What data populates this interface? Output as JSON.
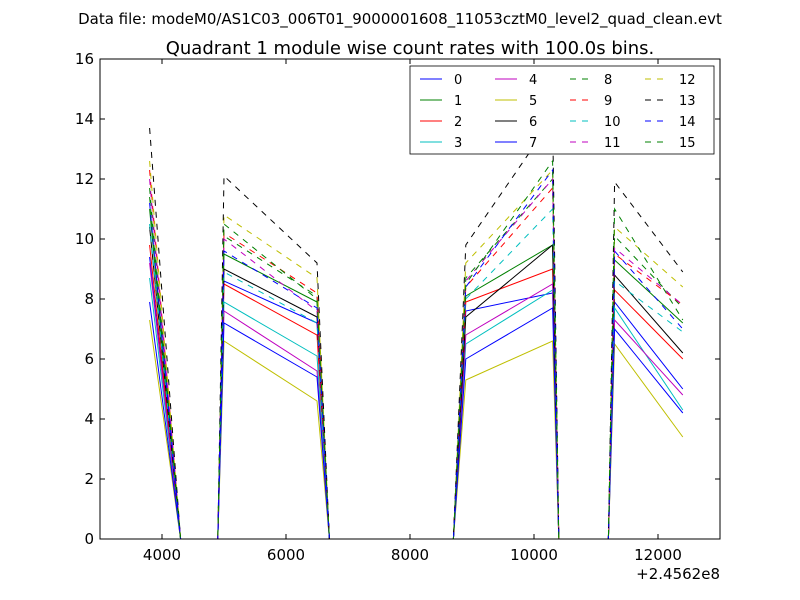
{
  "chart_data": {
    "type": "line",
    "suptitle": "Data file: modeM0/AS1C03_006T01_9000001608_11053cztM0_level2_quad_clean.evt",
    "title": "Quadrant 1 module wise count rates with 100.0s bins.",
    "xlabel": "",
    "ylabel": "",
    "x_offset_label": "+2.4562e8",
    "xlim": [
      3000,
      13000
    ],
    "ylim": [
      0,
      16
    ],
    "xticks": [
      4000,
      6000,
      8000,
      10000,
      12000
    ],
    "yticks": [
      0,
      2,
      4,
      6,
      8,
      10,
      12,
      14,
      16
    ],
    "legend_location": "upper right",
    "x": [
      3800,
      4300,
      4900,
      5000,
      6500,
      6700,
      8700,
      8900,
      10300,
      10400,
      11200,
      11300,
      12400
    ],
    "series": [
      {
        "name": "0",
        "color": "#0000ff",
        "dash": "solid",
        "values": [
          9.4,
          0,
          0,
          8.6,
          7.2,
          0,
          0,
          7.6,
          8.2,
          0,
          0,
          7.9,
          5.0
        ]
      },
      {
        "name": "1",
        "color": "#008000",
        "dash": "solid",
        "values": [
          11.0,
          0,
          0,
          9.5,
          7.9,
          0,
          0,
          8.1,
          9.8,
          0,
          0,
          9.3,
          7.2
        ]
      },
      {
        "name": "2",
        "color": "#ff0000",
        "dash": "solid",
        "values": [
          9.8,
          0,
          0,
          8.5,
          6.8,
          0,
          0,
          7.9,
          9.0,
          0,
          0,
          8.3,
          6.0
        ]
      },
      {
        "name": "3",
        "color": "#00bfbf",
        "dash": "solid",
        "values": [
          8.7,
          0,
          0,
          7.9,
          6.1,
          0,
          0,
          6.5,
          8.3,
          0,
          0,
          7.7,
          4.3
        ]
      },
      {
        "name": "4",
        "color": "#bf00bf",
        "dash": "solid",
        "values": [
          9.2,
          0,
          0,
          7.6,
          5.6,
          0,
          0,
          6.8,
          8.5,
          0,
          0,
          7.3,
          4.8
        ]
      },
      {
        "name": "5",
        "color": "#bfbf00",
        "dash": "solid",
        "values": [
          7.3,
          0,
          0,
          6.6,
          4.6,
          0,
          0,
          5.3,
          6.6,
          0,
          0,
          6.5,
          3.4
        ]
      },
      {
        "name": "6",
        "color": "#000000",
        "dash": "solid",
        "values": [
          10.4,
          0,
          0,
          9.0,
          7.4,
          0,
          0,
          7.4,
          9.8,
          0,
          0,
          8.8,
          6.2
        ]
      },
      {
        "name": "7",
        "color": "#0000ff",
        "dash": "solid",
        "values": [
          7.9,
          0,
          0,
          7.2,
          5.4,
          0,
          0,
          6.0,
          7.7,
          0,
          0,
          7.0,
          4.2
        ]
      },
      {
        "name": "8",
        "color": "#008000",
        "dash": "dashed",
        "values": [
          11.7,
          0,
          0,
          10.1,
          8.1,
          0,
          0,
          8.7,
          12.0,
          0,
          0,
          10.1,
          7.7
        ]
      },
      {
        "name": "9",
        "color": "#ff0000",
        "dash": "dashed",
        "values": [
          12.3,
          0,
          0,
          10.2,
          8.2,
          0,
          0,
          8.4,
          11.7,
          0,
          0,
          9.5,
          7.8
        ]
      },
      {
        "name": "10",
        "color": "#00bfbf",
        "dash": "dashed",
        "values": [
          10.5,
          0,
          0,
          8.9,
          7.2,
          0,
          0,
          8.0,
          11.0,
          0,
          0,
          8.6,
          6.9
        ]
      },
      {
        "name": "11",
        "color": "#bf00bf",
        "dash": "dashed",
        "values": [
          12.0,
          0,
          0,
          10.0,
          7.6,
          0,
          0,
          8.6,
          12.0,
          0,
          0,
          9.7,
          7.8
        ]
      },
      {
        "name": "12",
        "color": "#bfbf00",
        "dash": "dashed",
        "values": [
          12.6,
          0,
          0,
          10.8,
          8.7,
          0,
          0,
          9.2,
          12.3,
          0,
          0,
          10.4,
          8.4
        ]
      },
      {
        "name": "13",
        "color": "#000000",
        "dash": "dashed",
        "values": [
          13.7,
          0,
          0,
          12.1,
          9.2,
          0,
          0,
          9.8,
          14.0,
          0,
          0,
          11.9,
          8.9
        ]
      },
      {
        "name": "14",
        "color": "#0000ff",
        "dash": "dashed",
        "values": [
          11.2,
          0,
          0,
          9.6,
          7.7,
          0,
          0,
          8.4,
          12.3,
          0,
          0,
          9.6,
          7.0
        ]
      },
      {
        "name": "15",
        "color": "#008000",
        "dash": "dashed",
        "values": [
          11.4,
          0,
          0,
          10.5,
          8.0,
          0,
          0,
          8.5,
          12.6,
          0,
          0,
          11.0,
          7.3
        ]
      }
    ]
  }
}
